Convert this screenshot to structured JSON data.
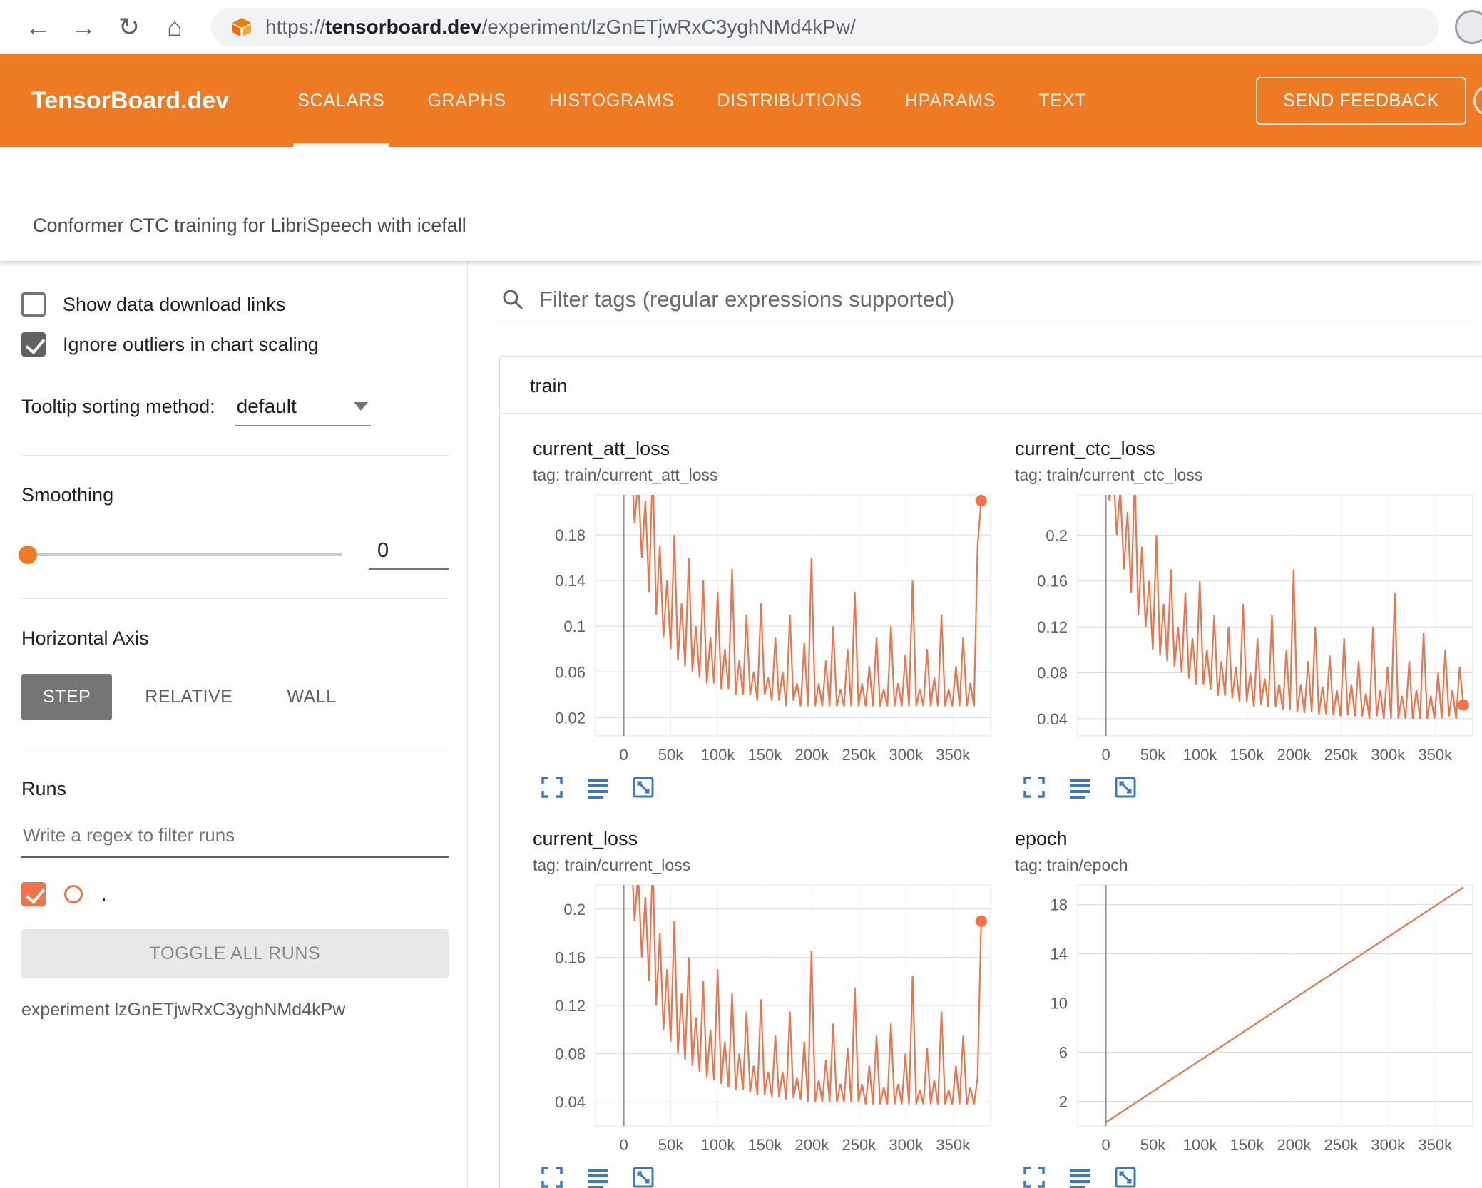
{
  "browser": {
    "url_prefix": "https://",
    "url_host": "tensorboard.dev",
    "url_path": "/experiment/lzGnETjwRxC3yghNMd4kPw/"
  },
  "header": {
    "brand": "TensorBoard.dev",
    "tabs": [
      {
        "label": "SCALARS",
        "active": true
      },
      {
        "label": "GRAPHS",
        "active": false
      },
      {
        "label": "HISTOGRAMS",
        "active": false
      },
      {
        "label": "DISTRIBUTIONS",
        "active": false
      },
      {
        "label": "HPARAMS",
        "active": false
      },
      {
        "label": "TEXT",
        "active": false
      }
    ],
    "feedback_label": "SEND FEEDBACK"
  },
  "subheader": {
    "title": "Conformer CTC training for LibriSpeech with icefall"
  },
  "sidebar": {
    "show_download_label": "Show data download links",
    "ignore_outliers_label": "Ignore outliers in chart scaling",
    "tooltip_label": "Tooltip sorting method:",
    "tooltip_value": "default",
    "smoothing_label": "Smoothing",
    "smoothing_value": "0",
    "axis_label": "Horizontal Axis",
    "axis_options": [
      "STEP",
      "RELATIVE",
      "WALL"
    ],
    "axis_selected": "STEP",
    "runs_label": "Runs",
    "runs_filter_placeholder": "Write a regex to filter runs",
    "run_item_label": ".",
    "toggle_all_label": "TOGGLE ALL RUNS",
    "experiment_text": "experiment lzGnETjwRxC3yghNMd4kPw"
  },
  "main": {
    "filter_placeholder": "Filter tags (regular expressions supported)",
    "group_title": "train"
  },
  "colors": {
    "header_orange": "#ee7b23",
    "series_orange": "#f0734a",
    "icon_blue": "#3b78c2"
  },
  "chart_data": [
    {
      "type": "line",
      "title": "current_att_loss",
      "tag": "tag: train/current_att_loss",
      "color": "#f0734a",
      "legend_position": "none",
      "grid": true,
      "x_max": 380000,
      "x_domain": [
        -30000,
        390000
      ],
      "xticks": [
        0,
        50000,
        100000,
        150000,
        200000,
        250000,
        300000,
        350000
      ],
      "xtick_labels": [
        "0",
        "50k",
        "100k",
        "150k",
        "200k",
        "250k",
        "300k",
        "350k"
      ],
      "ylim": [
        0.004,
        0.215
      ],
      "yticks": [
        0.02,
        0.06,
        0.1,
        0.14,
        0.18
      ],
      "ytick_labels": [
        "0.02",
        "0.06",
        "0.1",
        "0.14",
        "0.18"
      ],
      "end_dot": true,
      "values": [
        0.24,
        0.22,
        0.25,
        0.19,
        0.23,
        0.16,
        0.21,
        0.13,
        0.24,
        0.11,
        0.17,
        0.09,
        0.14,
        0.08,
        0.18,
        0.07,
        0.12,
        0.065,
        0.16,
        0.06,
        0.1,
        0.055,
        0.14,
        0.05,
        0.09,
        0.05,
        0.13,
        0.045,
        0.08,
        0.045,
        0.15,
        0.04,
        0.07,
        0.04,
        0.11,
        0.04,
        0.06,
        0.035,
        0.12,
        0.04,
        0.055,
        0.035,
        0.09,
        0.035,
        0.06,
        0.03,
        0.11,
        0.035,
        0.05,
        0.03,
        0.085,
        0.03,
        0.16,
        0.03,
        0.05,
        0.03,
        0.07,
        0.03,
        0.1,
        0.03,
        0.045,
        0.03,
        0.08,
        0.03,
        0.13,
        0.03,
        0.05,
        0.03,
        0.065,
        0.03,
        0.09,
        0.03,
        0.045,
        0.03,
        0.1,
        0.03,
        0.05,
        0.03,
        0.075,
        0.03,
        0.14,
        0.03,
        0.045,
        0.03,
        0.08,
        0.03,
        0.055,
        0.03,
        0.11,
        0.03,
        0.045,
        0.03,
        0.065,
        0.03,
        0.09,
        0.03,
        0.05,
        0.03,
        0.17,
        0.21
      ]
    },
    {
      "type": "line",
      "title": "current_ctc_loss",
      "tag": "tag: train/current_ctc_loss",
      "color": "#f0734a",
      "legend_position": "none",
      "grid": true,
      "x_max": 380000,
      "x_domain": [
        -30000,
        390000
      ],
      "xticks": [
        0,
        50000,
        100000,
        150000,
        200000,
        250000,
        300000,
        350000
      ],
      "xtick_labels": [
        "0",
        "50k",
        "100k",
        "150k",
        "200k",
        "250k",
        "300k",
        "350k"
      ],
      "ylim": [
        0.025,
        0.235
      ],
      "yticks": [
        0.04,
        0.08,
        0.12,
        0.16,
        0.2
      ],
      "ytick_labels": [
        "0.04",
        "0.08",
        "0.12",
        "0.16",
        "0.2"
      ],
      "end_dot": true,
      "values": [
        0.25,
        0.23,
        0.26,
        0.2,
        0.24,
        0.17,
        0.22,
        0.15,
        0.25,
        0.13,
        0.19,
        0.12,
        0.16,
        0.1,
        0.2,
        0.095,
        0.14,
        0.09,
        0.17,
        0.085,
        0.12,
        0.08,
        0.15,
        0.075,
        0.11,
        0.07,
        0.16,
        0.07,
        0.1,
        0.065,
        0.13,
        0.06,
        0.09,
        0.06,
        0.12,
        0.058,
        0.085,
        0.055,
        0.14,
        0.055,
        0.08,
        0.05,
        0.11,
        0.052,
        0.075,
        0.05,
        0.13,
        0.05,
        0.07,
        0.048,
        0.1,
        0.048,
        0.17,
        0.046,
        0.07,
        0.045,
        0.09,
        0.046,
        0.12,
        0.044,
        0.068,
        0.044,
        0.095,
        0.043,
        0.065,
        0.042,
        0.11,
        0.043,
        0.07,
        0.042,
        0.09,
        0.042,
        0.062,
        0.04,
        0.12,
        0.042,
        0.065,
        0.04,
        0.085,
        0.04,
        0.15,
        0.04,
        0.06,
        0.04,
        0.09,
        0.04,
        0.065,
        0.04,
        0.115,
        0.04,
        0.06,
        0.04,
        0.08,
        0.04,
        0.1,
        0.042,
        0.065,
        0.04,
        0.085,
        0.052
      ]
    },
    {
      "type": "line",
      "title": "current_loss",
      "tag": "tag: train/current_loss",
      "color": "#f0734a",
      "legend_position": "none",
      "grid": true,
      "x_max": 380000,
      "x_domain": [
        -30000,
        390000
      ],
      "xticks": [
        0,
        50000,
        100000,
        150000,
        200000,
        250000,
        300000,
        350000
      ],
      "xtick_labels": [
        "0",
        "50k",
        "100k",
        "150k",
        "200k",
        "250k",
        "300k",
        "350k"
      ],
      "ylim": [
        0.02,
        0.22
      ],
      "yticks": [
        0.04,
        0.08,
        0.12,
        0.16,
        0.2
      ],
      "ytick_labels": [
        "0.04",
        "0.08",
        "0.12",
        "0.16",
        "0.2"
      ],
      "end_dot": true,
      "values": [
        0.24,
        0.22,
        0.25,
        0.19,
        0.23,
        0.16,
        0.21,
        0.14,
        0.24,
        0.12,
        0.18,
        0.1,
        0.15,
        0.09,
        0.19,
        0.08,
        0.13,
        0.075,
        0.16,
        0.07,
        0.11,
        0.065,
        0.14,
        0.06,
        0.1,
        0.058,
        0.15,
        0.055,
        0.09,
        0.052,
        0.13,
        0.05,
        0.08,
        0.05,
        0.115,
        0.048,
        0.07,
        0.046,
        0.125,
        0.046,
        0.065,
        0.044,
        0.095,
        0.044,
        0.065,
        0.042,
        0.115,
        0.043,
        0.06,
        0.042,
        0.09,
        0.04,
        0.165,
        0.04,
        0.058,
        0.04,
        0.075,
        0.04,
        0.105,
        0.04,
        0.055,
        0.04,
        0.085,
        0.04,
        0.135,
        0.04,
        0.055,
        0.038,
        0.07,
        0.038,
        0.095,
        0.038,
        0.052,
        0.038,
        0.105,
        0.038,
        0.055,
        0.038,
        0.08,
        0.038,
        0.145,
        0.038,
        0.05,
        0.038,
        0.085,
        0.038,
        0.058,
        0.038,
        0.115,
        0.038,
        0.05,
        0.038,
        0.07,
        0.038,
        0.095,
        0.038,
        0.052,
        0.038,
        0.06,
        0.19
      ]
    },
    {
      "type": "line",
      "title": "epoch",
      "tag": "tag: train/epoch",
      "color": "#f0734a",
      "legend_position": "none",
      "grid": true,
      "x_max": 380000,
      "x_domain": [
        -30000,
        390000
      ],
      "xticks": [
        0,
        50000,
        100000,
        150000,
        200000,
        250000,
        300000,
        350000
      ],
      "xtick_labels": [
        "0",
        "50k",
        "100k",
        "150k",
        "200k",
        "250k",
        "300k",
        "350k"
      ],
      "ylim": [
        0,
        19.6
      ],
      "yticks": [
        2,
        6,
        10,
        14,
        18
      ],
      "ytick_labels": [
        "2",
        "6",
        "10",
        "14",
        "18"
      ],
      "end_dot": false,
      "values": [
        0.3,
        19.4
      ]
    }
  ]
}
